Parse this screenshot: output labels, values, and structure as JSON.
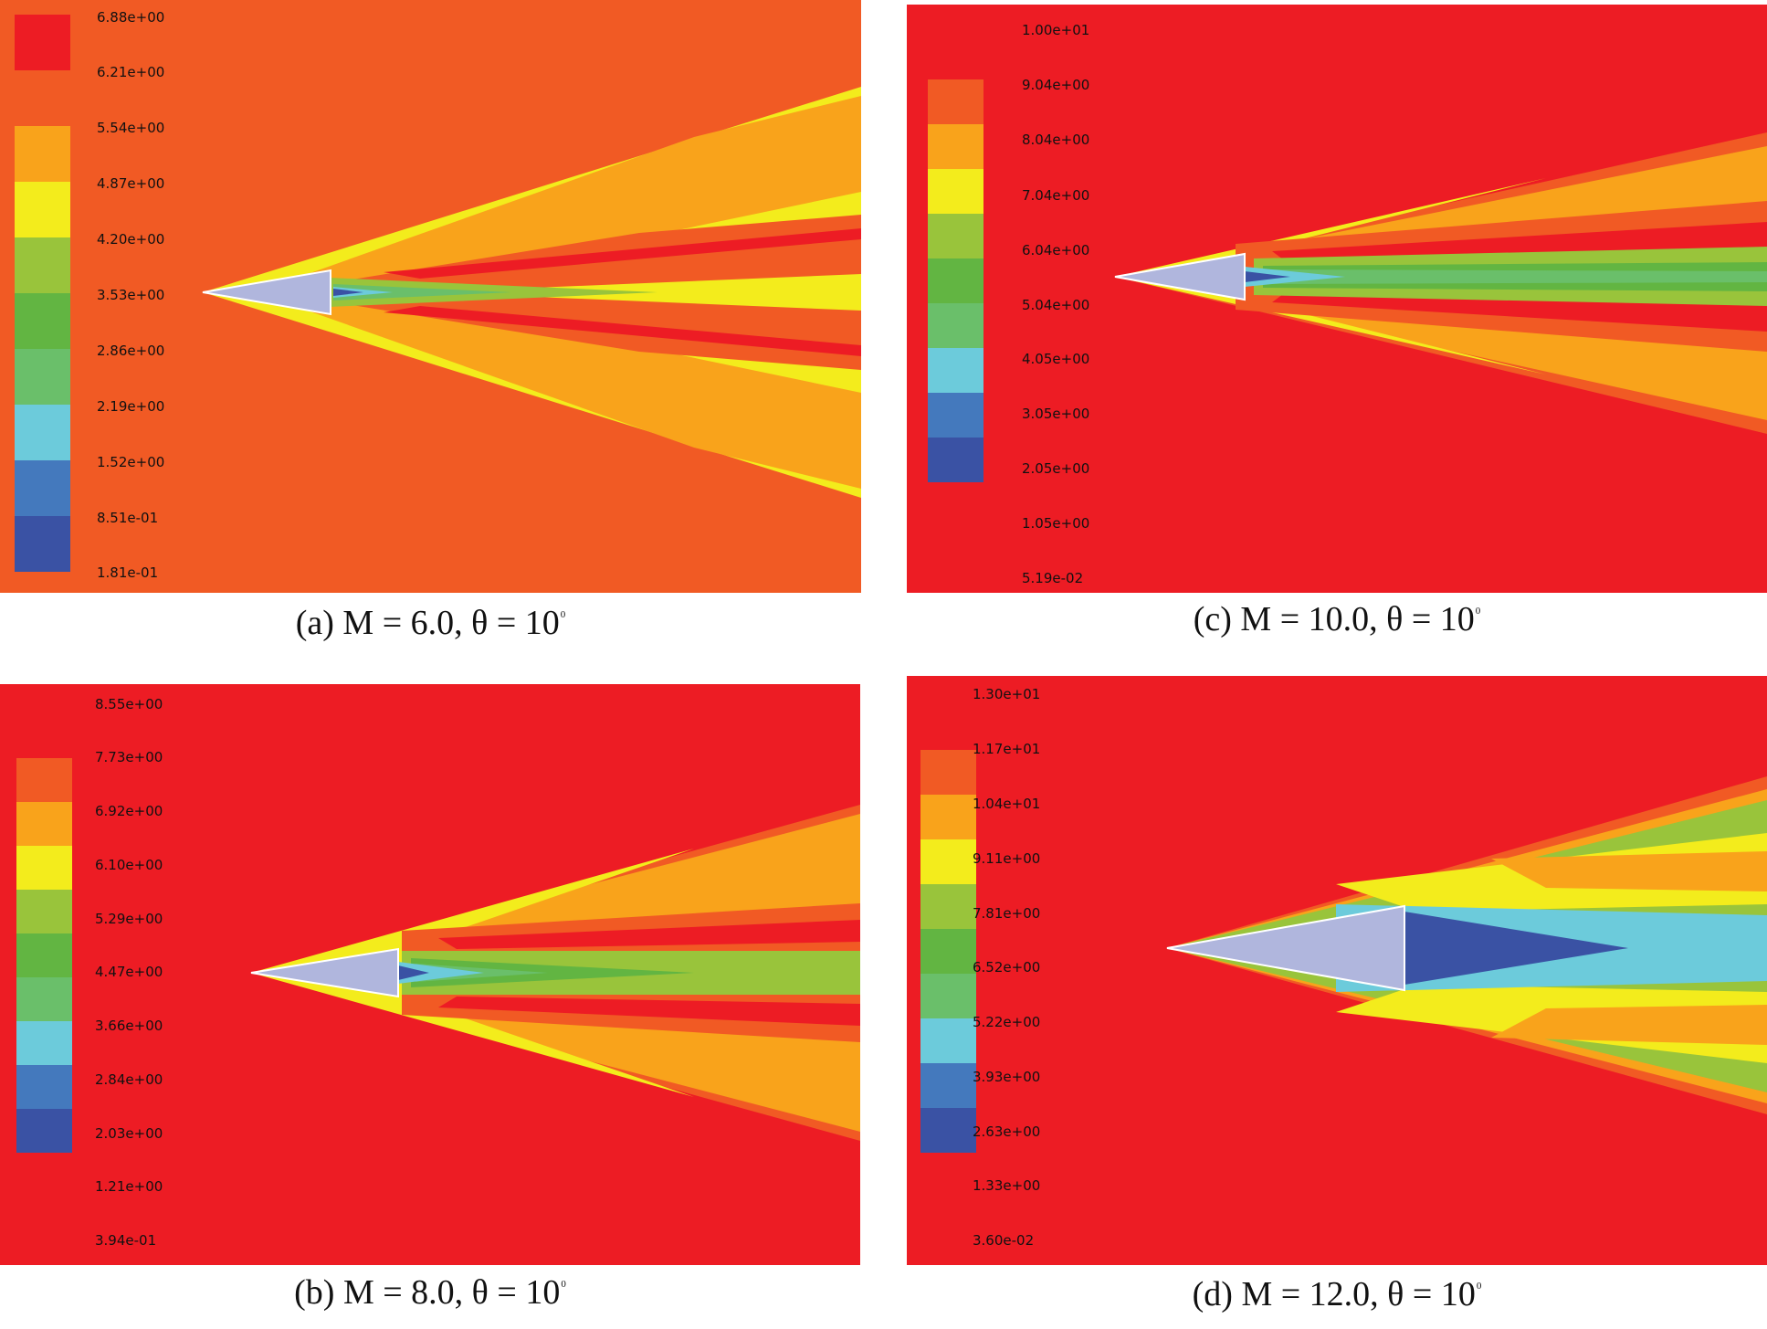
{
  "colors": {
    "c0": "#3a52a4",
    "c1": "#4479bd",
    "c2": "#6ccbdb",
    "c3": "#6abf6a",
    "c4": "#62b542",
    "c5": "#99c43b",
    "c6": "#f3ec1c",
    "c7": "#f9a31b",
    "c8": "#f15a24",
    "c9": "#ed1c24",
    "body": "#b0b6dd"
  },
  "panels": [
    {
      "id": "a",
      "caption_text": "(a) M = 6.0, θ = 10",
      "caption_sup": "0",
      "background": "c8",
      "levels": [
        "6.88e+00",
        "6.21e+00",
        "5.54e+00",
        "4.87e+00",
        "4.20e+00",
        "3.53e+00",
        "2.86e+00",
        "2.19e+00",
        "1.52e+00",
        "8.51e-01",
        "1.81e-01"
      ],
      "swatch_colors": [
        "c9",
        "c8",
        "c7",
        "c6",
        "c5",
        "c4",
        "c3",
        "c2",
        "c1",
        "c0"
      ]
    },
    {
      "id": "b",
      "caption_text": "(b) M = 8.0, θ = 10",
      "caption_sup": "0",
      "background": "c9",
      "levels": [
        "8.55e+00",
        "7.73e+00",
        "6.92e+00",
        "6.10e+00",
        "5.29e+00",
        "4.47e+00",
        "3.66e+00",
        "2.84e+00",
        "2.03e+00",
        "1.21e+00",
        "3.94e-01"
      ],
      "swatch_colors": [
        "c9",
        "c8",
        "c7",
        "c6",
        "c5",
        "c4",
        "c3",
        "c2",
        "c1",
        "c0"
      ]
    },
    {
      "id": "c",
      "caption_text": "(c) M = 10.0, θ = 10",
      "caption_sup": "0",
      "background": "c9",
      "levels": [
        "1.00e+01",
        "9.04e+00",
        "8.04e+00",
        "7.04e+00",
        "6.04e+00",
        "5.04e+00",
        "4.05e+00",
        "3.05e+00",
        "2.05e+00",
        "1.05e+00",
        "5.19e-02"
      ],
      "swatch_colors": [
        "c9",
        "c8",
        "c7",
        "c6",
        "c5",
        "c4",
        "c3",
        "c2",
        "c1",
        "c0"
      ]
    },
    {
      "id": "d",
      "caption_text": "(d) M = 12.0, θ = 10",
      "caption_sup": "0",
      "background": "c9",
      "levels": [
        "1.30e+01",
        "1.17e+01",
        "1.04e+01",
        "9.11e+00",
        "7.81e+00",
        "6.52e+00",
        "5.22e+00",
        "3.93e+00",
        "2.63e+00",
        "1.33e+00",
        "3.60e-02"
      ],
      "swatch_colors": [
        "c9",
        "c8",
        "c7",
        "c6",
        "c5",
        "c4",
        "c3",
        "c2",
        "c1",
        "c0"
      ]
    }
  ]
}
